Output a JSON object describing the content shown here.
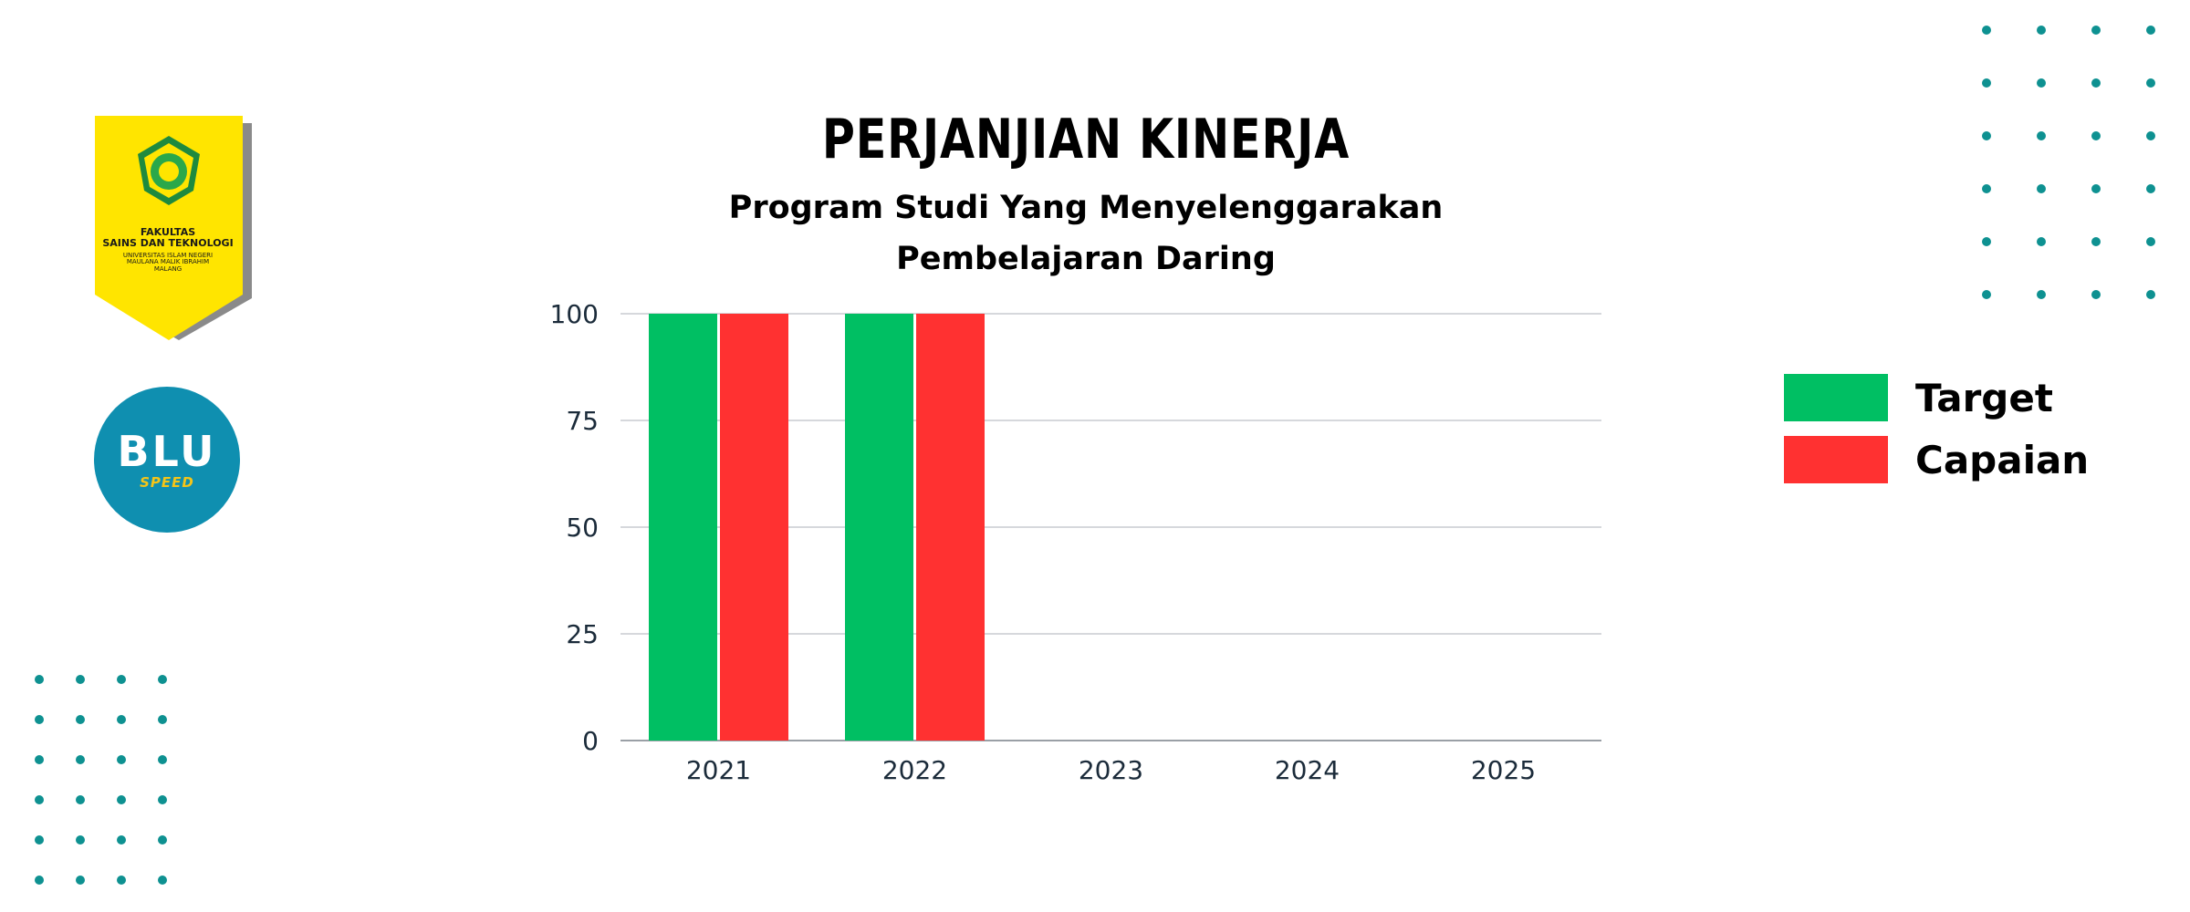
{
  "badge": {
    "line1": "FAKULTAS",
    "line2": "SAINS DAN TEKNOLOGI",
    "line3": "UNIVERSITAS ISLAM NEGERI",
    "line4": "MAULANA MALIK IBRAHIM",
    "line5": "MALANG",
    "colors": {
      "background": "#ffe500",
      "shadow": "#8a8a8a",
      "emblem": "#1e8a3e"
    }
  },
  "blu_logo": {
    "word": "BLU",
    "sub": "SPEED",
    "colors": {
      "background": "#0f8fb0",
      "text": "#ffffff",
      "accent": "#f5c518"
    }
  },
  "decor": {
    "dot_color": "#0e9191"
  },
  "chart_data": {
    "type": "bar",
    "title": "PERJANJIAN KINERJA",
    "subtitle_line1": "Program Studi Yang Menyelenggarakan",
    "subtitle_line2": "Pembelajaran Daring",
    "categories": [
      "2021",
      "2022",
      "2023",
      "2024",
      "2025"
    ],
    "series": [
      {
        "name": "Target",
        "color": "#00bf63",
        "values": [
          100,
          100,
          null,
          null,
          null
        ]
      },
      {
        "name": "Capaian",
        "color": "#ff3131",
        "values": [
          100,
          100,
          null,
          null,
          null
        ]
      }
    ],
    "ylim": [
      0,
      100
    ],
    "yticks": [
      0,
      25,
      50,
      75,
      100
    ],
    "ytick_labels": [
      "0",
      "25",
      "50",
      "75",
      "100"
    ],
    "grid": true,
    "legend_position": "right"
  }
}
